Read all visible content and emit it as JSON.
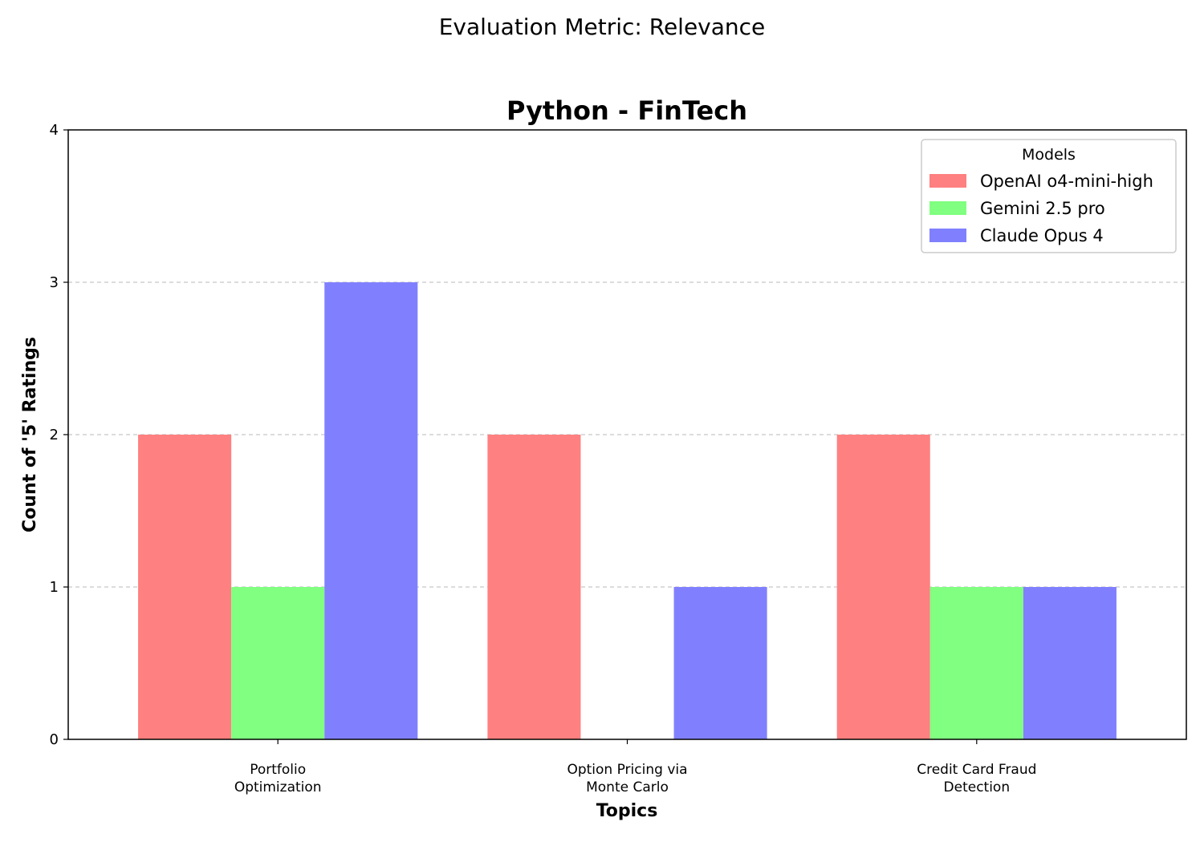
{
  "figure": {
    "suptitle": "Evaluation Metric: Relevance"
  },
  "chart_data": {
    "type": "bar",
    "title": "Python - FinTech",
    "xlabel": "Topics",
    "ylabel": "Count of '5' Ratings",
    "categories": [
      [
        "Portfolio",
        "Optimization"
      ],
      [
        "Option Pricing via",
        "Monte Carlo"
      ],
      [
        "Credit Card Fraud",
        "Detection"
      ]
    ],
    "series": [
      {
        "name": "OpenAI o4-mini-high",
        "values": [
          2,
          2,
          2
        ],
        "color": "#ff8080"
      },
      {
        "name": "Gemini 2.5 pro",
        "values": [
          1,
          0,
          1
        ],
        "color": "#80ff80"
      },
      {
        "name": "Claude Opus 4",
        "values": [
          3,
          1,
          1
        ],
        "color": "#8080ff"
      }
    ],
    "ylim": [
      0,
      4
    ],
    "yticks": [
      0,
      1,
      2,
      3,
      4
    ],
    "grid": {
      "y": true,
      "style": "dashed"
    },
    "legend": {
      "title": "Models",
      "placement": "upper-right"
    }
  }
}
